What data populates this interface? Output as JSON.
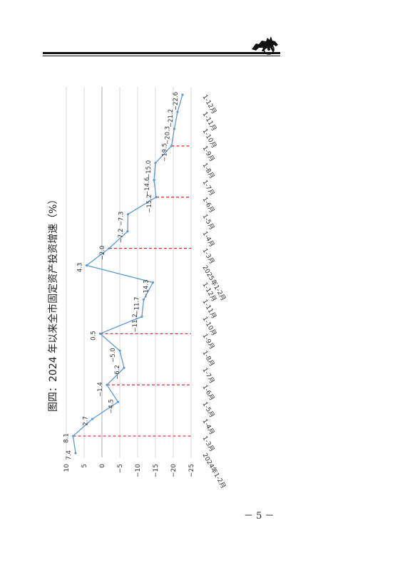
{
  "page": {
    "number_text": "－ 5 －"
  },
  "figure": {
    "caption": "图四：2024 年以来全市固定资产投资增速（%）"
  },
  "chart_data": {
    "type": "line",
    "title": "图四：2024 年以来全市固定资产投资增速（%）",
    "xlabel": "",
    "ylabel": "",
    "ylim": [
      -25,
      10
    ],
    "y_ticks": [
      10,
      5,
      0,
      -5,
      -10,
      -15,
      -20,
      -25
    ],
    "y_tick_labels": [
      "10",
      "5",
      "0",
      "−5",
      "−10",
      "−15",
      "−20",
      "−25"
    ],
    "grid": true,
    "orientation": "rotated -90deg on page",
    "categories": [
      "2024年1-2月",
      "1-3月",
      "1-4月",
      "1-5月",
      "1-6月",
      "1-7月",
      "1-8月",
      "1-9月",
      "1-10月",
      "1-11月",
      "1-12月",
      "2025年1-2月",
      "1-3月",
      "1-4月",
      "1-5月",
      "1-6月",
      "1-7月",
      "1-8月",
      "1-9月",
      "1-10月",
      "1-11月",
      "1-12月"
    ],
    "series": [
      {
        "color": "#5b9bd5",
        "values": [
          7.4,
          8.1,
          2.7,
          -4.5,
          -1.4,
          -6.2,
          -5.0,
          0.5,
          -11.2,
          -11.7,
          -14.3,
          4.3,
          -2.0,
          -7.2,
          -7.3,
          -15.2,
          -14.6,
          -15.0,
          -19.5,
          -20.3,
          -21.2,
          -22.6
        ],
        "data_labels": [
          "7.4",
          "8.1",
          "2.7",
          "−4.5",
          "−1.4",
          "−6.2",
          "−5.0",
          "0.5",
          "−11.2",
          "−11.7",
          "−14.3",
          "4.3",
          "−2.0",
          "−7.2",
          "−7.3",
          "−15.2",
          "−14.6",
          "−15.0",
          "−19.5",
          "−20.3",
          "−21.2",
          "−22.6"
        ]
      }
    ],
    "reference_lines": {
      "color": "#e02020",
      "style": "dashed",
      "at_categories": [
        1,
        4,
        7,
        12,
        15,
        18
      ]
    }
  }
}
